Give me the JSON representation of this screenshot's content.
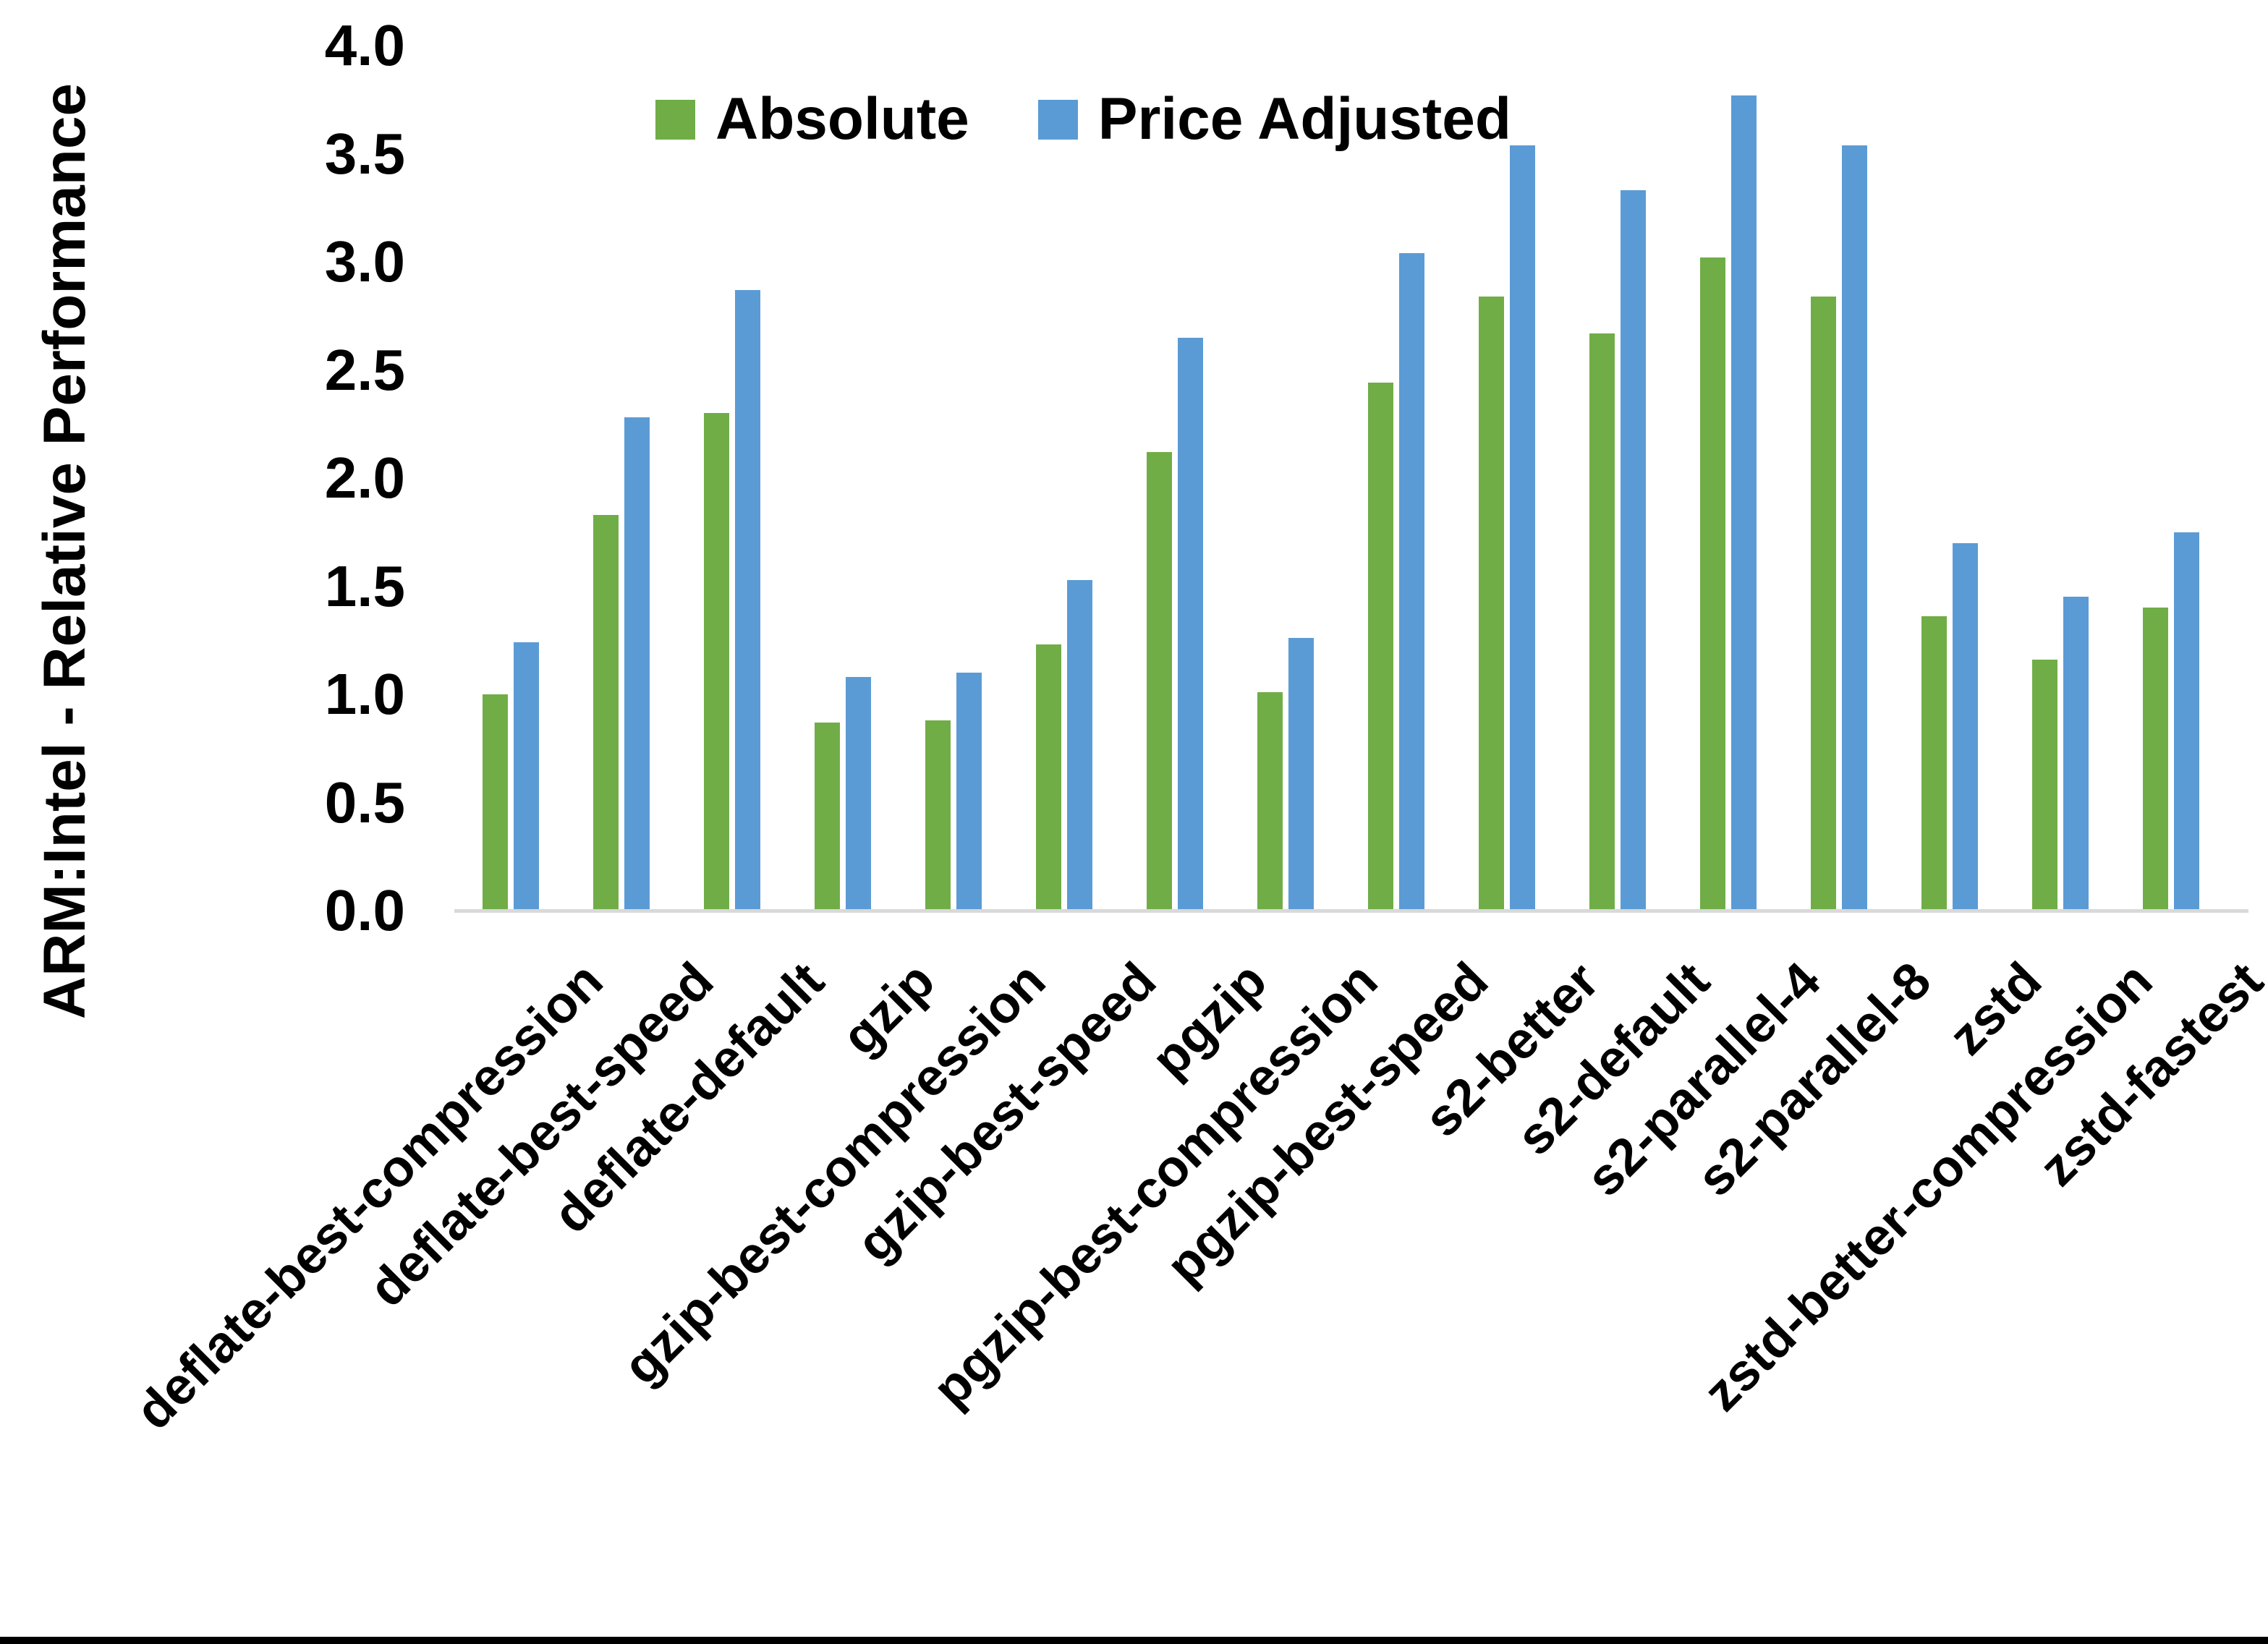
{
  "chart_data": {
    "type": "bar",
    "title": "",
    "ylabel": "ARM:Intel - Relative Performance",
    "xlabel": "",
    "ylim": [
      0.0,
      4.0
    ],
    "ytick_step": 0.5,
    "yticks": [
      "4.0",
      "3.5",
      "3.0",
      "2.5",
      "2.0",
      "1.5",
      "1.0",
      "0.5",
      "0.0"
    ],
    "grid": false,
    "legend_position": "top-center",
    "categories": [
      "deflate-best-compression",
      "deflate-best-speed",
      "deflate-default",
      "gzip",
      "gzip-best-compression",
      "gzip-best-speed",
      "pgzip",
      "pgzip-best-compression",
      "pgzip-best-speed",
      "s2-better",
      "s2-default",
      "s2-parallel-4",
      "s2-parallel-8",
      "zstd",
      "zstd-better-compression",
      "zstd-fastest"
    ],
    "series": [
      {
        "name": "Absolute",
        "color": "#70AD47",
        "values": [
          1.0,
          1.83,
          2.3,
          0.87,
          0.88,
          1.23,
          2.12,
          1.01,
          2.44,
          2.84,
          2.67,
          3.02,
          2.84,
          1.36,
          1.16,
          1.4
        ]
      },
      {
        "name": "Price Adjusted",
        "color": "#5B9BD5",
        "values": [
          1.24,
          2.28,
          2.87,
          1.08,
          1.1,
          1.53,
          2.65,
          1.26,
          3.04,
          3.54,
          3.33,
          3.77,
          3.54,
          1.7,
          1.45,
          1.75
        ]
      }
    ]
  },
  "colors": {
    "background": "#FFFFFF",
    "axis_line": "#D9D9D9",
    "text": "#000000",
    "frame": "#000000"
  }
}
